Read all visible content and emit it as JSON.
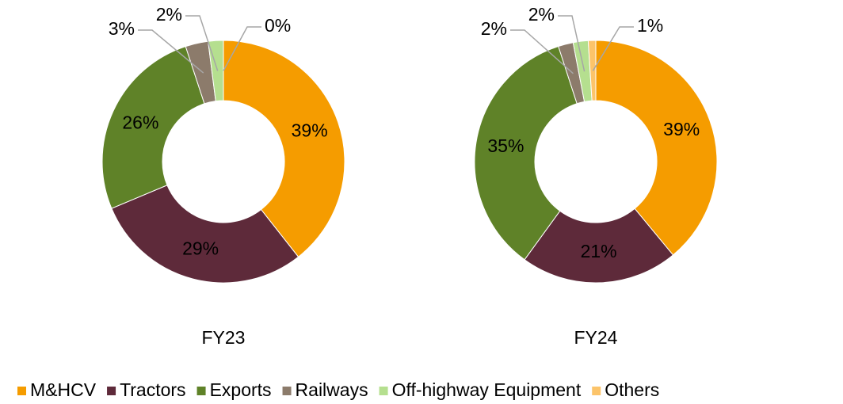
{
  "legend": {
    "categories": [
      "M&HCV",
      "Tractors",
      "Exports",
      "Railways",
      "Off-highway Equipment",
      "Others"
    ],
    "colors": [
      "#f59c00",
      "#5e2a3a",
      "#5f8228",
      "#8c7b6b",
      "#b5df8f",
      "#fcc46a"
    ]
  },
  "chart_data": [
    {
      "type": "pie",
      "title": "FY23",
      "values": [
        39,
        29,
        26,
        3,
        2,
        0
      ],
      "value_labels": [
        "39%",
        "29%",
        "26%",
        "3%",
        "2%",
        "0%"
      ]
    },
    {
      "type": "pie",
      "title": "FY24",
      "values": [
        39,
        21,
        35,
        2,
        2,
        1
      ],
      "value_labels": [
        "39%",
        "21%",
        "35%",
        "2%",
        "2%",
        "1%"
      ]
    }
  ]
}
